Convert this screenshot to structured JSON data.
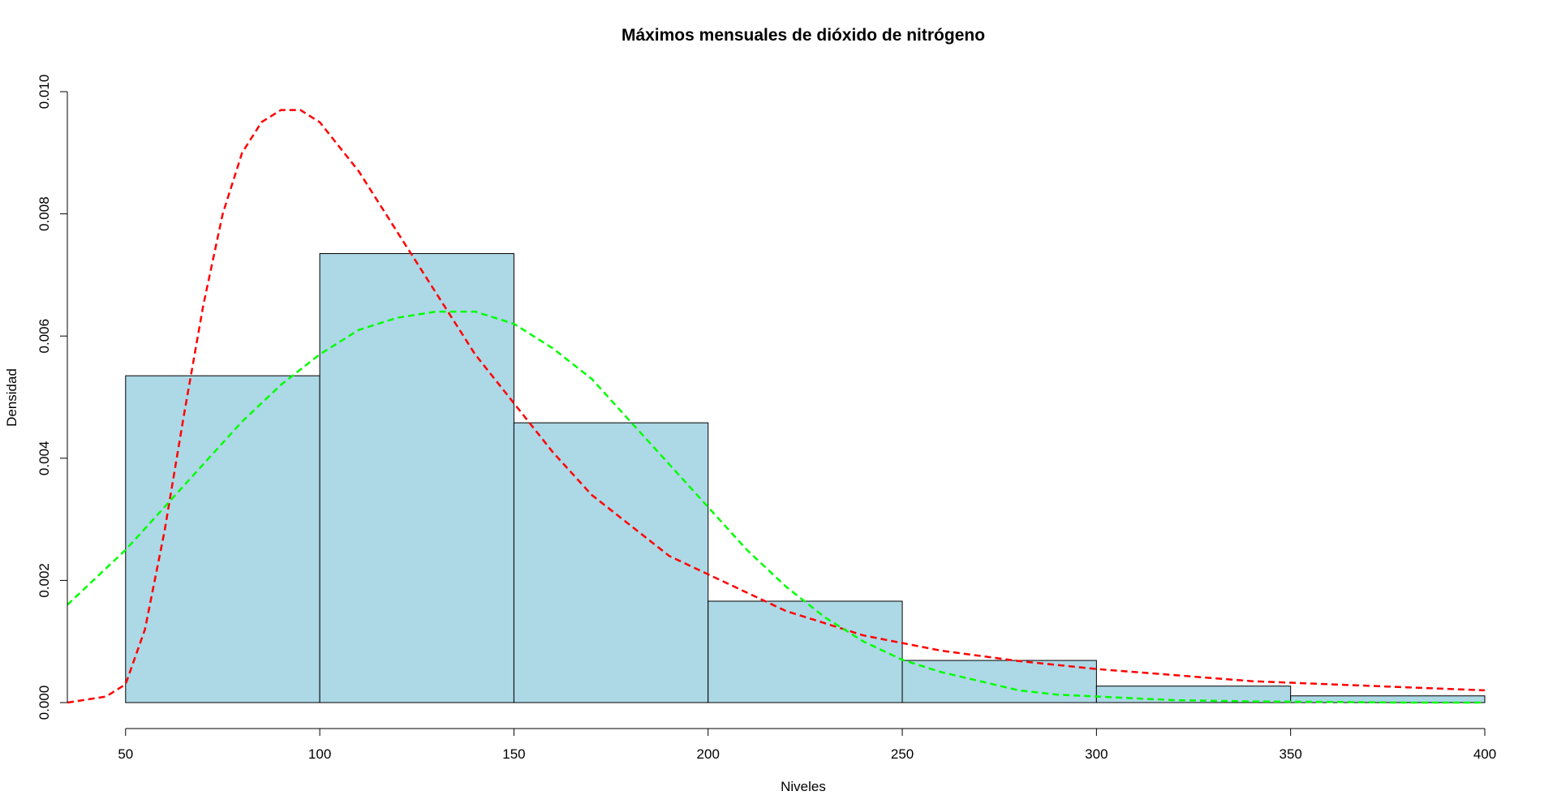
{
  "chart_data": {
    "type": "bar",
    "title": "Máximos mensuales de dióxido de nitrógeno",
    "xlabel": "Niveles",
    "ylabel": "Densidad",
    "xlim": [
      35,
      400
    ],
    "ylim": [
      0,
      0.01
    ],
    "x_ticks": [
      "50",
      "100",
      "150",
      "200",
      "250",
      "300",
      "350",
      "400"
    ],
    "y_ticks": [
      "0.000",
      "0.002",
      "0.004",
      "0.006",
      "0.008",
      "0.010"
    ],
    "bins": [
      {
        "from": 50,
        "to": 100,
        "density": 0.00535
      },
      {
        "from": 100,
        "to": 150,
        "density": 0.00735
      },
      {
        "from": 150,
        "to": 200,
        "density": 0.00458
      },
      {
        "from": 200,
        "to": 250,
        "density": 0.00166
      },
      {
        "from": 250,
        "to": 300,
        "density": 0.00069
      },
      {
        "from": 300,
        "to": 350,
        "density": 0.00027
      },
      {
        "from": 350,
        "to": 400,
        "density": 0.00011
      }
    ],
    "bar_color": "#add8e6",
    "series": [
      {
        "line_style": "dashed",
        "color": "#ff0000",
        "x": [
          35,
          45,
          50,
          55,
          60,
          65,
          70,
          75,
          80,
          85,
          90,
          95,
          100,
          110,
          120,
          130,
          140,
          150,
          160,
          170,
          180,
          190,
          200,
          220,
          240,
          260,
          280,
          300,
          320,
          340,
          360,
          380,
          400
        ],
        "y": [
          0.0,
          0.0001,
          0.0003,
          0.0012,
          0.0028,
          0.0047,
          0.0065,
          0.008,
          0.009,
          0.0095,
          0.0097,
          0.0097,
          0.0095,
          0.0087,
          0.0077,
          0.0067,
          0.0057,
          0.0049,
          0.0041,
          0.0034,
          0.0029,
          0.0024,
          0.0021,
          0.0015,
          0.0011,
          0.00085,
          0.00068,
          0.00055,
          0.00045,
          0.00035,
          0.0003,
          0.00025,
          0.0002
        ]
      },
      {
        "line_style": "dashed",
        "color": "#00ff00",
        "x": [
          35,
          50,
          60,
          70,
          80,
          90,
          100,
          110,
          120,
          130,
          134,
          140,
          150,
          160,
          170,
          180,
          190,
          200,
          210,
          220,
          230,
          240,
          250,
          260,
          270,
          280,
          290,
          300,
          320,
          340,
          360,
          380,
          400
        ],
        "y": [
          0.0016,
          0.0025,
          0.0032,
          0.0039,
          0.0046,
          0.0052,
          0.0057,
          0.0061,
          0.0063,
          0.0064,
          0.0064,
          0.0064,
          0.0062,
          0.0058,
          0.0053,
          0.0046,
          0.0039,
          0.0032,
          0.0025,
          0.0019,
          0.0014,
          0.001,
          0.0007,
          0.0005,
          0.00035,
          0.0002,
          0.00013,
          0.0001,
          4e-05,
          2e-05,
          1e-05,
          0.0,
          0.0
        ]
      }
    ]
  }
}
